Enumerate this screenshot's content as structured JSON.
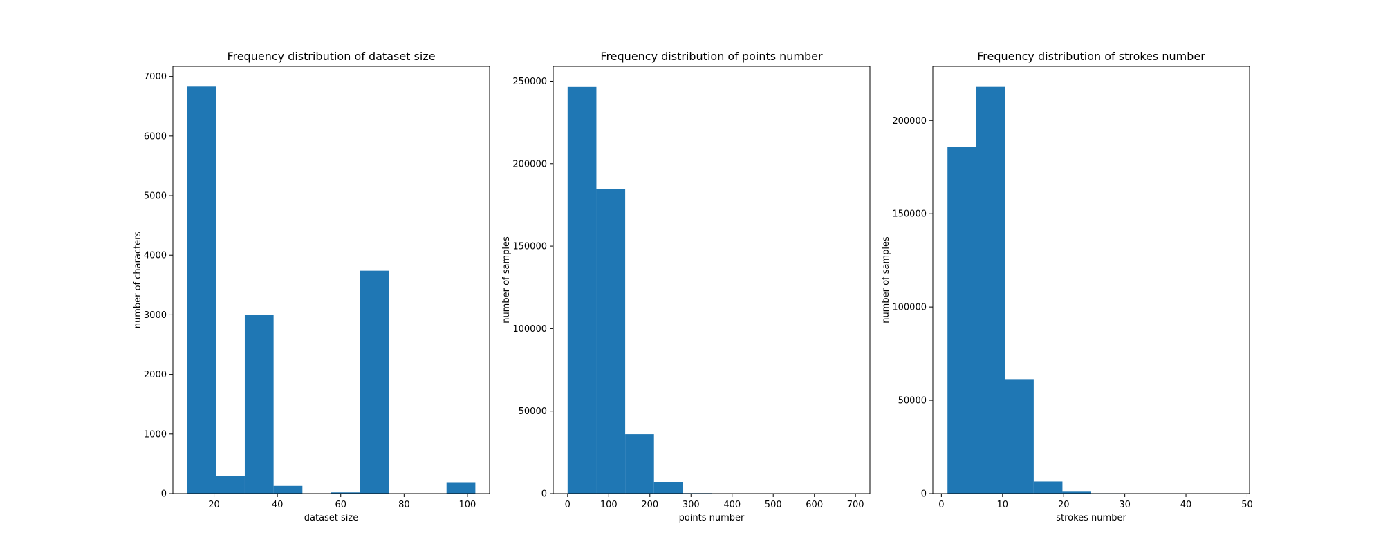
{
  "chart_data": [
    {
      "type": "bar",
      "title": "Frequency distribution of dataset size",
      "xlabel": "dataset size",
      "ylabel": "number of characters",
      "xlim": [
        7,
        107
      ],
      "ylim": [
        0,
        7170
      ],
      "xticks": [
        20,
        40,
        60,
        80,
        100
      ],
      "yticks": [
        0,
        1000,
        2000,
        3000,
        4000,
        5000,
        6000,
        7000
      ],
      "bin_edges": [
        11.5,
        20.6,
        29.7,
        38.8,
        47.9,
        57.0,
        66.1,
        75.2,
        84.3,
        93.4,
        102.5
      ],
      "values": [
        6830,
        300,
        3000,
        130,
        0,
        20,
        3740,
        0,
        0,
        180
      ],
      "color": "#1f77b4"
    },
    {
      "type": "bar",
      "title": "Frequency distribution of points number",
      "xlabel": "points number",
      "ylabel": "number of samples",
      "xlim": [
        -35,
        735
      ],
      "ylim": [
        0,
        259000
      ],
      "xticks": [
        0,
        100,
        200,
        300,
        400,
        500,
        600,
        700
      ],
      "yticks": [
        0,
        50000,
        100000,
        150000,
        200000,
        250000
      ],
      "bin_edges": [
        0,
        70,
        140,
        210,
        280,
        350,
        420,
        490,
        560,
        630,
        700
      ],
      "values": [
        246500,
        184500,
        36000,
        6800,
        300,
        100,
        50,
        20,
        10,
        5
      ],
      "color": "#1f77b4"
    },
    {
      "type": "bar",
      "title": "Frequency distribution of strokes number",
      "xlabel": "strokes number",
      "ylabel": "number of samples",
      "xlim": [
        -1.4,
        50.4
      ],
      "ylim": [
        0,
        229000
      ],
      "xticks": [
        0,
        10,
        20,
        30,
        40,
        50
      ],
      "yticks": [
        0,
        50000,
        100000,
        150000,
        200000
      ],
      "bin_edges": [
        1.0,
        5.7,
        10.4,
        15.1,
        19.8,
        24.5,
        29.2,
        33.9,
        38.6,
        43.3,
        48.0
      ],
      "values": [
        186000,
        218000,
        61000,
        6500,
        1000,
        200,
        60,
        20,
        10,
        5
      ],
      "color": "#1f77b4"
    }
  ]
}
